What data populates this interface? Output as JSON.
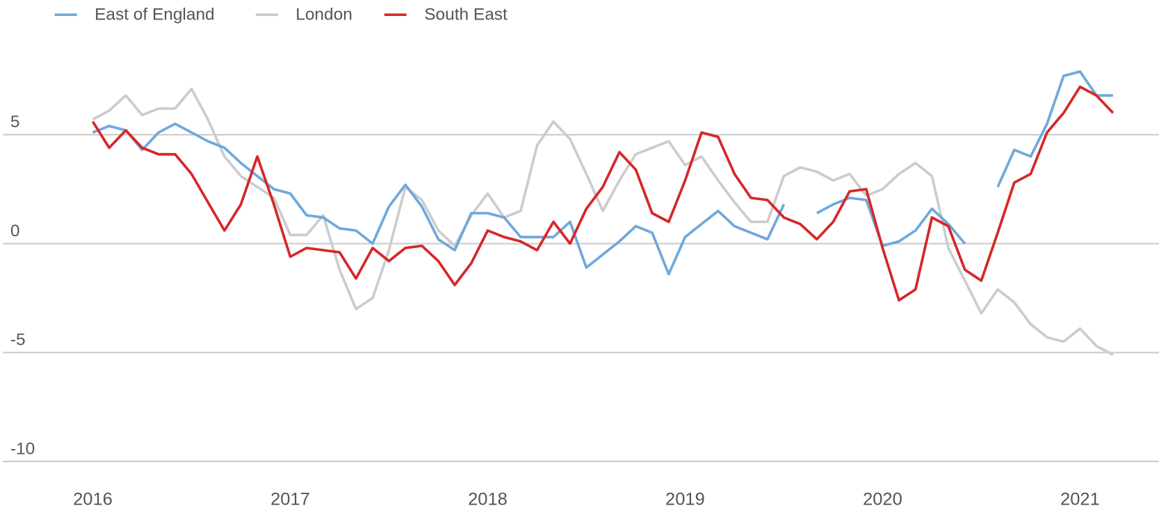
{
  "chart_data": {
    "type": "line",
    "x": [
      2016,
      2016.083,
      2016.167,
      2016.25,
      2016.333,
      2016.417,
      2016.5,
      2016.583,
      2016.667,
      2016.75,
      2016.833,
      2016.917,
      2017,
      2017.083,
      2017.167,
      2017.25,
      2017.333,
      2017.417,
      2017.5,
      2017.583,
      2017.667,
      2017.75,
      2017.833,
      2017.917,
      2018,
      2018.083,
      2018.167,
      2018.25,
      2018.333,
      2018.417,
      2018.5,
      2018.583,
      2018.667,
      2018.75,
      2018.833,
      2018.917,
      2019,
      2019.083,
      2019.167,
      2019.25,
      2019.333,
      2019.417,
      2019.5,
      2019.583,
      2019.667,
      2019.75,
      2019.833,
      2019.917,
      2020,
      2020.083,
      2020.167,
      2020.25,
      2020.333,
      2020.417,
      2020.5,
      2020.583,
      2020.667,
      2020.75,
      2020.833,
      2020.917,
      2021,
      2021.083,
      2021.167
    ],
    "series": [
      {
        "name": "East of England",
        "color": "#6fa8dc",
        "values": [
          5.1,
          5.4,
          5.2,
          4.3,
          5.1,
          5.5,
          5.1,
          4.7,
          4.4,
          3.7,
          3.1,
          2.5,
          2.3,
          1.3,
          1.2,
          0.7,
          0.6,
          0.0,
          1.7,
          2.7,
          1.7,
          0.2,
          -0.3,
          1.4,
          1.4,
          1.2,
          0.3,
          0.3,
          0.3,
          1.0,
          -1.1,
          -0.5,
          0.1,
          0.8,
          0.5,
          -1.4,
          0.3,
          0.9,
          1.5,
          0.8,
          0.5,
          0.2,
          1.8,
          null,
          1.4,
          1.8,
          2.1,
          2.0,
          -0.1,
          0.1,
          0.6,
          1.6,
          0.9,
          0.0,
          null,
          2.6,
          4.3,
          4.0,
          5.5,
          7.7,
          7.9,
          6.8,
          6.8
        ]
      },
      {
        "name": "London",
        "color": "#cccccc",
        "values": [
          5.7,
          6.1,
          6.8,
          5.9,
          6.2,
          6.2,
          7.1,
          5.7,
          4.0,
          3.1,
          2.6,
          2.1,
          0.4,
          0.4,
          1.3,
          -1.2,
          -3.0,
          -2.5,
          -0.3,
          2.6,
          2.0,
          0.6,
          -0.1,
          1.3,
          2.3,
          1.2,
          1.5,
          4.5,
          5.6,
          4.8,
          3.2,
          1.5,
          2.9,
          4.1,
          4.4,
          4.7,
          3.6,
          4.0,
          2.9,
          1.9,
          1.0,
          1.0,
          3.1,
          3.5,
          3.3,
          2.9,
          3.2,
          2.2,
          2.5,
          3.2,
          3.7,
          3.1,
          -0.2,
          -1.7,
          -3.2,
          -2.1,
          -2.7,
          -3.7,
          -4.3,
          -4.5,
          -3.9,
          -4.7,
          -5.1
        ]
      },
      {
        "name": "South East",
        "color": "#d62728",
        "values": [
          5.6,
          4.4,
          5.2,
          4.4,
          4.1,
          4.1,
          3.2,
          1.9,
          0.6,
          1.8,
          4.0,
          1.8,
          -0.6,
          -0.2,
          -0.3,
          -0.4,
          -1.6,
          -0.2,
          -0.8,
          -0.2,
          -0.1,
          -0.8,
          -1.9,
          -0.9,
          0.6,
          0.3,
          0.1,
          -0.3,
          1.0,
          0.0,
          1.6,
          2.6,
          4.2,
          3.4,
          1.4,
          1.0,
          2.9,
          5.1,
          4.9,
          3.2,
          2.1,
          2.0,
          1.2,
          0.9,
          0.2,
          1.0,
          2.4,
          2.5,
          -0.2,
          -2.6,
          -2.1,
          1.2,
          0.8,
          -1.2,
          -1.7,
          0.5,
          2.8,
          3.2,
          5.1,
          6.0,
          7.2,
          6.8,
          6.0
        ]
      }
    ],
    "xlim": [
      2015.53,
      2021.4
    ],
    "xticks": [
      2016,
      2017,
      2018,
      2019,
      2020,
      2021
    ],
    "ylim": [
      -10,
      10
    ],
    "yticks": [
      5,
      0,
      -5,
      -10
    ],
    "grid": true,
    "legend": "top"
  }
}
